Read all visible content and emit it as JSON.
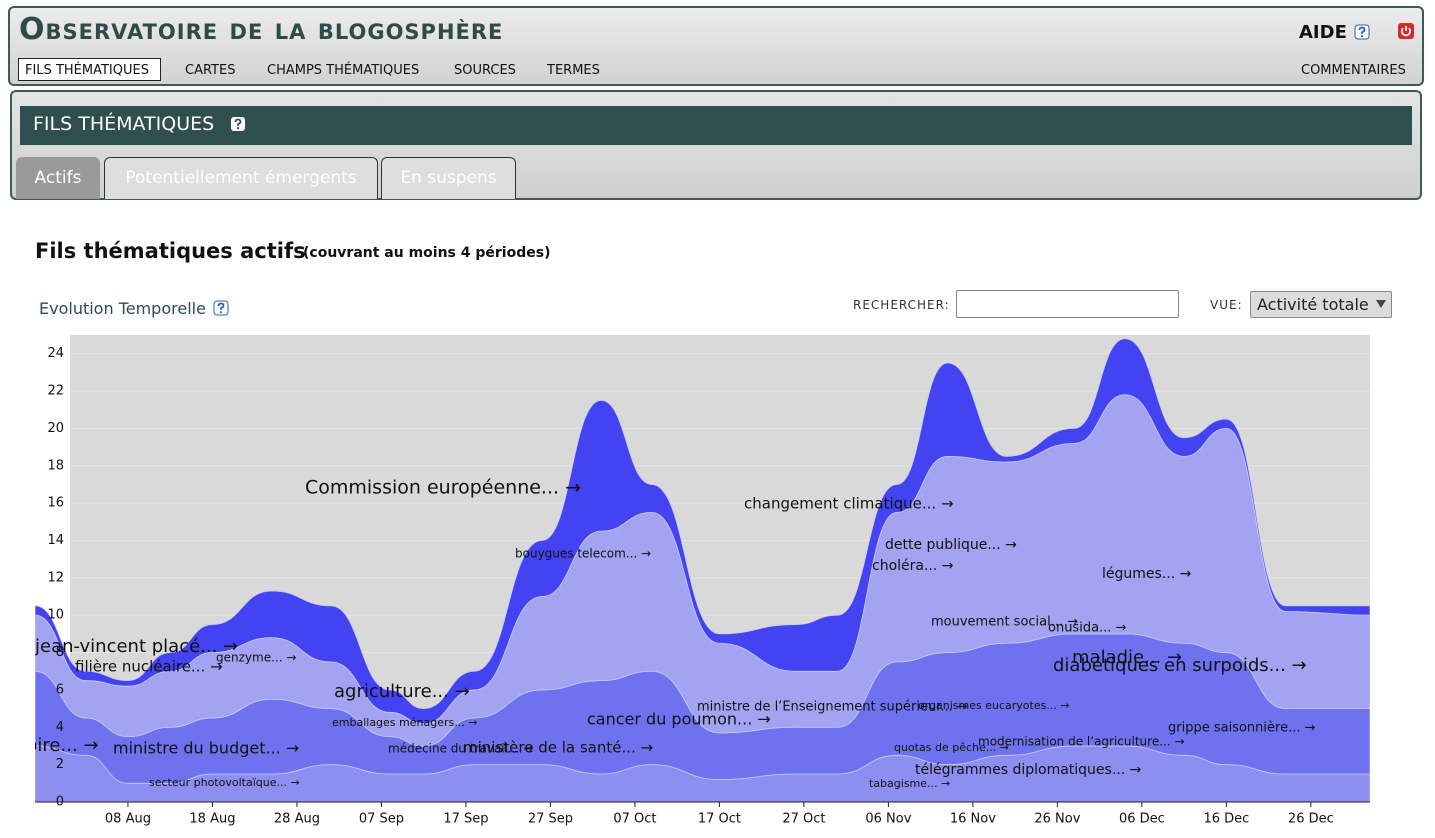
{
  "header": {
    "title": "Observatoire de la blogosphère",
    "help": "AIDE",
    "nav": [
      "FILS THÉMATIQUES",
      "CARTES",
      "CHAMPS THÉMATIQUES",
      "SOURCES",
      "TERMES"
    ],
    "nav_right": "COMMENTAIRES"
  },
  "section": {
    "title": "FILS THÉMATIQUES",
    "tabs": [
      "Actifs",
      "Potentiellement émergents",
      "En suspens"
    ]
  },
  "content": {
    "heading": "Fils thématiques actifs",
    "subheading": "(couvrant au moins 4 périodes)",
    "panel_title": "Evolution Temporelle",
    "search_label": "RECHERCHER:",
    "view_label": "VUE:",
    "view_value": "Activité totale"
  },
  "chart_data": {
    "type": "stacked_area",
    "x": [
      -4,
      2,
      7,
      12,
      17,
      24,
      31,
      38,
      42,
      48,
      56,
      63,
      69,
      77,
      86,
      91,
      98,
      104,
      111,
      119,
      125,
      132,
      137,
      144,
      154
    ],
    "xlim": [
      -4,
      154
    ],
    "xticks": [
      {
        "value": 7,
        "label": "08 Aug"
      },
      {
        "value": 17,
        "label": "18 Aug"
      },
      {
        "value": 27,
        "label": "28 Aug"
      },
      {
        "value": 37,
        "label": "07 Sep"
      },
      {
        "value": 47,
        "label": "17 Sep"
      },
      {
        "value": 57,
        "label": "27 Sep"
      },
      {
        "value": 67,
        "label": "07 Oct"
      },
      {
        "value": 77,
        "label": "17 Oct"
      },
      {
        "value": 87,
        "label": "27 Oct"
      },
      {
        "value": 97,
        "label": "06 Nov"
      },
      {
        "value": 107,
        "label": "16 Nov"
      },
      {
        "value": 117,
        "label": "26 Nov"
      },
      {
        "value": 127,
        "label": "06 Dec"
      },
      {
        "value": 137,
        "label": "16 Dec"
      },
      {
        "value": 147,
        "label": "26 Dec"
      }
    ],
    "ylim": [
      0,
      25
    ],
    "yticks": [
      0,
      2,
      4,
      6,
      8,
      10,
      12,
      14,
      16,
      18,
      20,
      22,
      24
    ],
    "grid": true,
    "series": [
      {
        "color": "#8c8ef0",
        "values": [
          3,
          2.5,
          1,
          1,
          1.5,
          1.5,
          2,
          1.5,
          1.5,
          2,
          2,
          1.5,
          2,
          1.2,
          1.5,
          1.5,
          2.5,
          2,
          2.5,
          3,
          3,
          2.5,
          2,
          1.5,
          1.5
        ]
      },
      {
        "color": "#6f72ee",
        "values": [
          4,
          2,
          2.5,
          3,
          3,
          4,
          3,
          2,
          1.5,
          2.5,
          4,
          5,
          5,
          2.5,
          2.5,
          2.5,
          5,
          6,
          6,
          6,
          6,
          6,
          6,
          3.5,
          3.5
        ]
      },
      {
        "color": "#a2a4f2",
        "values": [
          3,
          2,
          2.7,
          3,
          3.5,
          3.3,
          2.5,
          1.3,
          1.2,
          1.5,
          5,
          8,
          8.5,
          4.8,
          3,
          3,
          8,
          10.5,
          9.7,
          10.2,
          12.8,
          10,
          12,
          5.2,
          5
        ]
      },
      {
        "color": "#4343f2",
        "values": [
          0.5,
          0.5,
          0.3,
          1,
          1.5,
          2.5,
          3,
          1.2,
          0.8,
          1,
          3,
          7,
          1.5,
          0.5,
          2.5,
          3,
          1.5,
          5,
          0.3,
          0.8,
          3,
          1,
          0.5,
          0.3,
          0.5
        ]
      }
    ],
    "annotations": [
      "Commission européenne... →",
      "changement climatique... →",
      "bouygues telecom... →",
      "dette publique... →",
      "choléra... →",
      "légumes... →",
      "mouvement social... →",
      "onusida... →",
      "jean-vincent placé... →",
      "filière nucléaire... →",
      "genzyme... →",
      "maladie... →",
      "diabétiques en surpoids... →",
      "agriculture... →",
      "ministre de l’Enseignement supérieur... →",
      "organismes eucaryotes... →",
      "emballages ménagers... →",
      "cancer du poumon... →",
      "grippe saisonnière... →",
      "noire... →",
      "ministre du budget... →",
      "médecine du travail... →",
      "ministère de la santé... →",
      "quotas de pêche... →",
      "modernisation de l’agriculture... →",
      "télégrammes diplomatiques... →",
      "secteur photovoltaïque... →",
      "tabagisme... →"
    ]
  }
}
